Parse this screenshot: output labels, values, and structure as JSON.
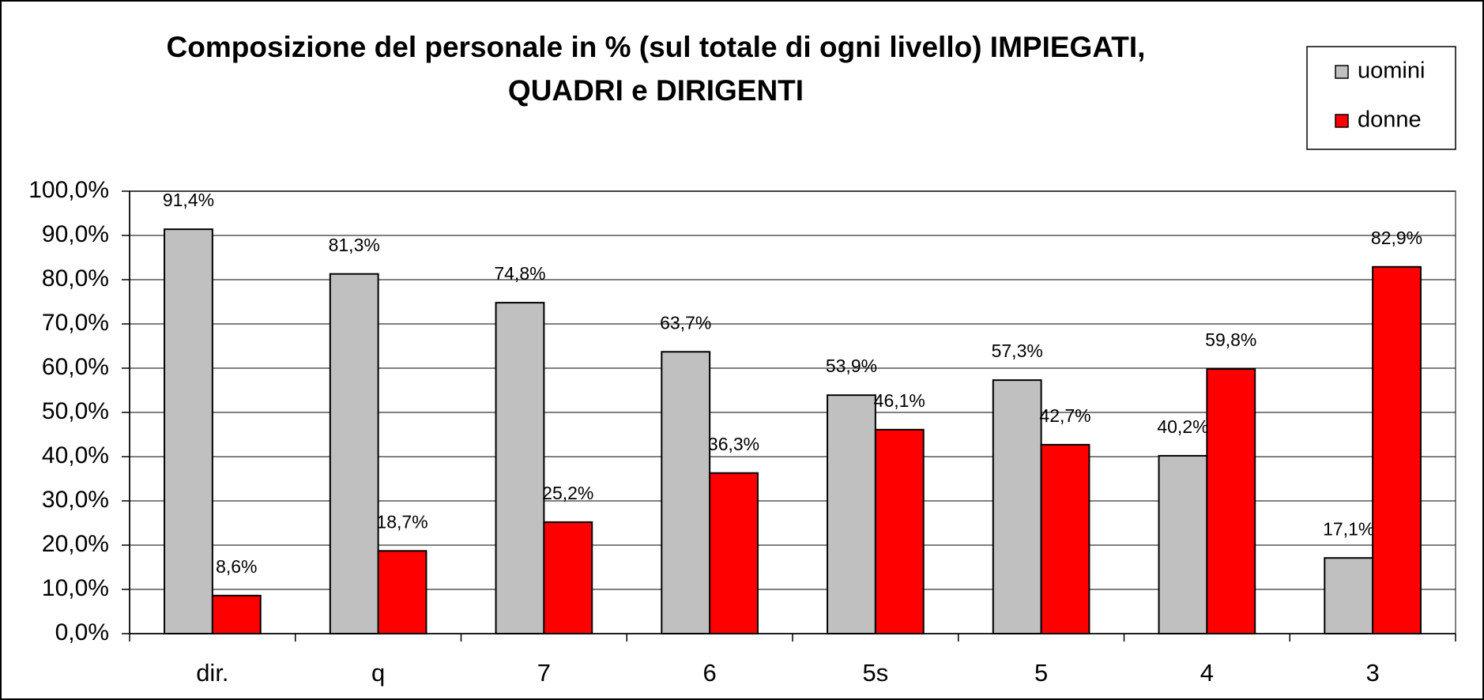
{
  "chart_data": {
    "type": "bar",
    "title": [
      "Composizione del personale in % (sul totale di ogni livello)  IMPIEGATI,",
      "QUADRI e DIRIGENTI"
    ],
    "categories": [
      "dir.",
      "q",
      "7",
      "6",
      "5s",
      "5",
      "4",
      "3"
    ],
    "series": [
      {
        "name": "uomini",
        "color": "#c0c0c0",
        "values": [
          91.4,
          81.3,
          74.8,
          63.7,
          53.9,
          57.3,
          40.2,
          17.1
        ],
        "value_labels": [
          "91,4%",
          "81,3%",
          "74,8%",
          "63,7%",
          "53,9%",
          "57,3%",
          "40,2%",
          "17,1%"
        ]
      },
      {
        "name": "donne",
        "color": "#ff0000",
        "values": [
          8.6,
          18.7,
          25.2,
          36.3,
          46.1,
          42.7,
          59.8,
          82.9
        ],
        "value_labels": [
          "8,6%",
          "18,7%",
          "25,2%",
          "36,3%",
          "46,1%",
          "42,7%",
          "59,8%",
          "82,9%"
        ]
      }
    ],
    "ylim": [
      0,
      100
    ],
    "yticks": [
      {
        "value": 0,
        "label": "0,0%"
      },
      {
        "value": 10,
        "label": "10,0%"
      },
      {
        "value": 20,
        "label": "20,0%"
      },
      {
        "value": 30,
        "label": "30,0%"
      },
      {
        "value": 40,
        "label": "40,0%"
      },
      {
        "value": 50,
        "label": "50,0%"
      },
      {
        "value": 60,
        "label": "60,0%"
      },
      {
        "value": 70,
        "label": "70,0%"
      },
      {
        "value": 80,
        "label": "80,0%"
      },
      {
        "value": 90,
        "label": "90,0%"
      },
      {
        "value": 100,
        "label": "100,0%"
      }
    ],
    "grid": true,
    "legend": "top-right"
  }
}
